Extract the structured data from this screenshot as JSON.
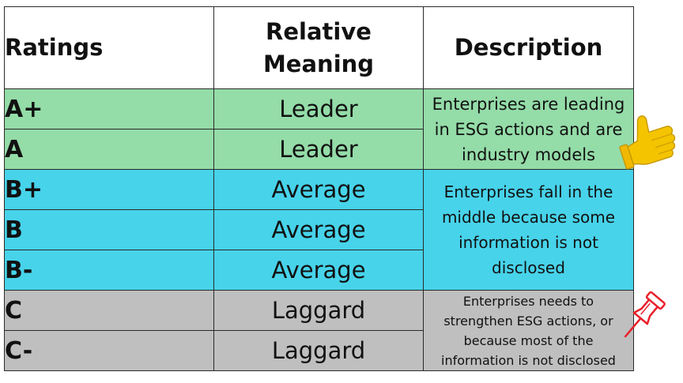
{
  "headers": {
    "ratings": "Ratings",
    "meaning_line1": "Relative",
    "meaning_line2": "Meaning",
    "description": "Description"
  },
  "rows": [
    {
      "rating": "A+",
      "meaning": "Leader"
    },
    {
      "rating": "A",
      "meaning": "Leader"
    },
    {
      "rating": "B+",
      "meaning": "Average"
    },
    {
      "rating": "B",
      "meaning": "Average"
    },
    {
      "rating": "B-",
      "meaning": "Average"
    },
    {
      "rating": "C",
      "meaning": "Laggard"
    },
    {
      "rating": "C-",
      "meaning": "Laggard"
    }
  ],
  "descriptions": {
    "leader": [
      "Enterprises are leading",
      "in ESG actions and are",
      "industry models"
    ],
    "average": [
      "Enterprises fall in the",
      "middle because some",
      "information is not",
      "disclosed"
    ],
    "laggard": [
      "Enterprises needs to",
      "strengthen ESG actions, or",
      "because most of the",
      "information is not disclosed"
    ]
  },
  "colors": {
    "leader": "#94dca8",
    "average": "#47d3ea",
    "laggard": "#bfbfbf",
    "thumb": "#f5c400",
    "pin": "#e8202a"
  },
  "icons": {
    "leader": "thumbs-up-icon",
    "laggard": "push-pin-icon"
  }
}
